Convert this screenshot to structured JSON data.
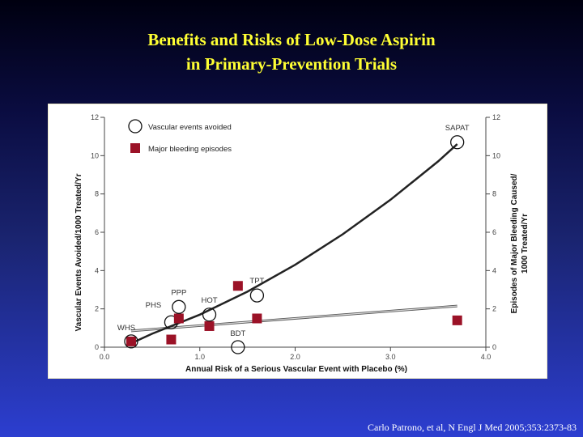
{
  "slide": {
    "title_line1": "Benefits and Risks of Low-Dose Aspirin",
    "title_line2": "in Primary-Prevention Trials",
    "citation": "Carlo Patrono, et al, N Engl J Med 2005;353:2373-83"
  },
  "colors": {
    "title": "#ffff33",
    "bleeding_marker": "#9b1227",
    "curve": "#222222",
    "trend": "#888888"
  },
  "chart_data": {
    "type": "scatter",
    "xlabel": "Annual Risk of a Serious Vascular Event with Placebo (%)",
    "ylabel": "Vascular Events Avoided/1000 Treated/Yr",
    "y2label_line1": "Episodes of Major Bleeding Caused/",
    "y2label_line2": "1000 Treated/Yr",
    "xlim": [
      0,
      4
    ],
    "ylim": [
      0,
      12
    ],
    "x_ticks": [
      "0.0",
      "1.0",
      "2.0",
      "3.0",
      "4.0"
    ],
    "x_tick_values": [
      0,
      1,
      2,
      3,
      4
    ],
    "y_ticks": [
      "0",
      "2",
      "4",
      "6",
      "8",
      "10",
      "12"
    ],
    "y_tick_values": [
      0,
      2,
      4,
      6,
      8,
      10,
      12
    ],
    "legend": [
      {
        "label": "Vascular events avoided",
        "marker": "open-circle"
      },
      {
        "label": "Major bleeding episodes",
        "marker": "filled-square"
      }
    ],
    "legend_position": "top-left",
    "trials": [
      {
        "name": "WHS",
        "x": 0.28,
        "avoided": 0.3,
        "bleeding": 0.3
      },
      {
        "name": "PHS",
        "x": 0.7,
        "avoided": 1.3,
        "bleeding": 0.4
      },
      {
        "name": "PPP",
        "x": 0.78,
        "avoided": 2.1,
        "bleeding": 1.5
      },
      {
        "name": "HOT",
        "x": 1.1,
        "avoided": 1.7,
        "bleeding": 1.1
      },
      {
        "name": "BDT",
        "x": 1.4,
        "avoided": 0.0,
        "bleeding": 3.2
      },
      {
        "name": "TPT",
        "x": 1.6,
        "avoided": 2.7,
        "bleeding": 1.5
      },
      {
        "name": "SAPAT",
        "x": 3.7,
        "avoided": 10.7,
        "bleeding": 1.4
      }
    ],
    "fit_curve": {
      "x": [
        0.28,
        0.5,
        1.0,
        1.5,
        2.0,
        2.5,
        3.0,
        3.5,
        3.7
      ],
      "y": [
        0.2,
        0.7,
        1.7,
        2.9,
        4.3,
        5.9,
        7.7,
        9.7,
        10.6
      ]
    },
    "trend_line": {
      "x": [
        0.28,
        3.7
      ],
      "y": [
        0.85,
        2.15
      ]
    }
  }
}
